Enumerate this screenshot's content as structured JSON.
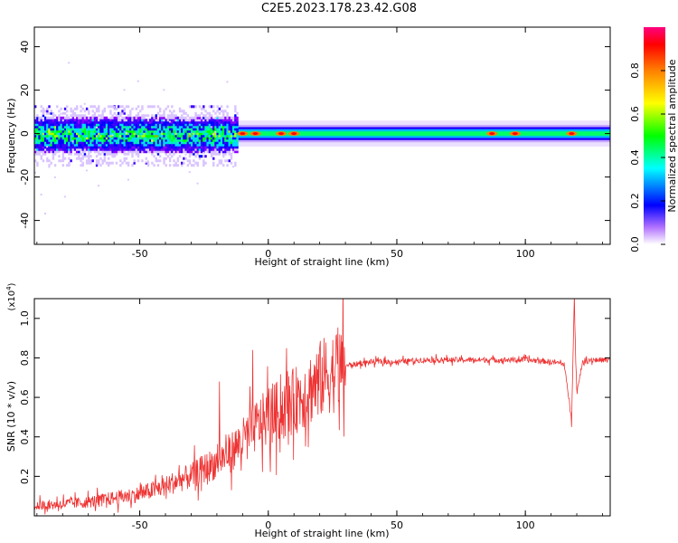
{
  "figure_title": "C2E5.2023.178.23.42.G08",
  "chart_data": [
    {
      "type": "heatmap",
      "xlabel": "Height of straight line (km)",
      "ylabel": "Frequency (Hz)",
      "xlim": [
        -91,
        133
      ],
      "ylim": [
        -51,
        49
      ],
      "xticks": [
        -50,
        0,
        50,
        100
      ],
      "yticks": [
        -40,
        -20,
        0,
        20,
        40
      ],
      "grid": false,
      "colorbar": {
        "label": "Normalized spectral amplitude",
        "range": [
          0,
          1
        ],
        "ticks": [
          "0.0",
          "0.2",
          "0.4",
          "0.6",
          "0.8"
        ],
        "colormap": [
          "#ffffff",
          "#7b00ff",
          "#0000ff",
          "#00ffff",
          "#00ff00",
          "#ffff00",
          "#ff8000",
          "#ff0000",
          "#ff0080"
        ]
      },
      "ridge": {
        "center_frequency_hz": 0,
        "noisy_region_x": [
          -91,
          -12
        ],
        "noisy_halfwidth_hz": 7,
        "clean_region_x": [
          -12,
          133
        ],
        "clean_halfwidth_hz": 3,
        "peak_amplitude_points_x": [
          -10,
          -5,
          5,
          10,
          87,
          96,
          118
        ]
      }
    },
    {
      "type": "line",
      "xlabel": "Height of straight line (km)",
      "ylabel": "SNR (10 * v/v)",
      "y_scale_label": "(x10^4)",
      "xlim": [
        -91,
        133
      ],
      "ylim": [
        0.0,
        1.1
      ],
      "xticks": [
        -50,
        0,
        50,
        100
      ],
      "yticks": [
        0.2,
        0.4,
        0.6,
        0.8,
        1.0
      ],
      "color": "#ee3333",
      "series": [
        {
          "x": [
            -91,
            -80,
            -70,
            -60,
            -50,
            -45,
            -40,
            -35,
            -30,
            -25,
            -20,
            -15,
            -10,
            -5,
            0,
            5,
            10,
            15,
            20,
            25,
            30,
            35,
            40,
            50,
            60,
            70,
            80,
            90,
            100,
            110,
            115,
            118,
            119,
            120,
            122,
            125,
            133
          ],
          "y": [
            0.05,
            0.06,
            0.07,
            0.09,
            0.11,
            0.13,
            0.15,
            0.18,
            0.2,
            0.24,
            0.27,
            0.32,
            0.38,
            0.45,
            0.5,
            0.54,
            0.58,
            0.63,
            0.69,
            0.73,
            0.76,
            0.77,
            0.78,
            0.78,
            0.79,
            0.79,
            0.79,
            0.79,
            0.79,
            0.78,
            0.77,
            0.5,
            1.08,
            0.62,
            0.77,
            0.79,
            0.79
          ],
          "spikes": [
            {
              "x": -19,
              "y": 0.68
            },
            {
              "x": -6,
              "y": 0.84
            },
            {
              "x": 119,
              "y": 1.12
            },
            {
              "x": 118,
              "y": 0.45
            }
          ]
        }
      ]
    }
  ]
}
